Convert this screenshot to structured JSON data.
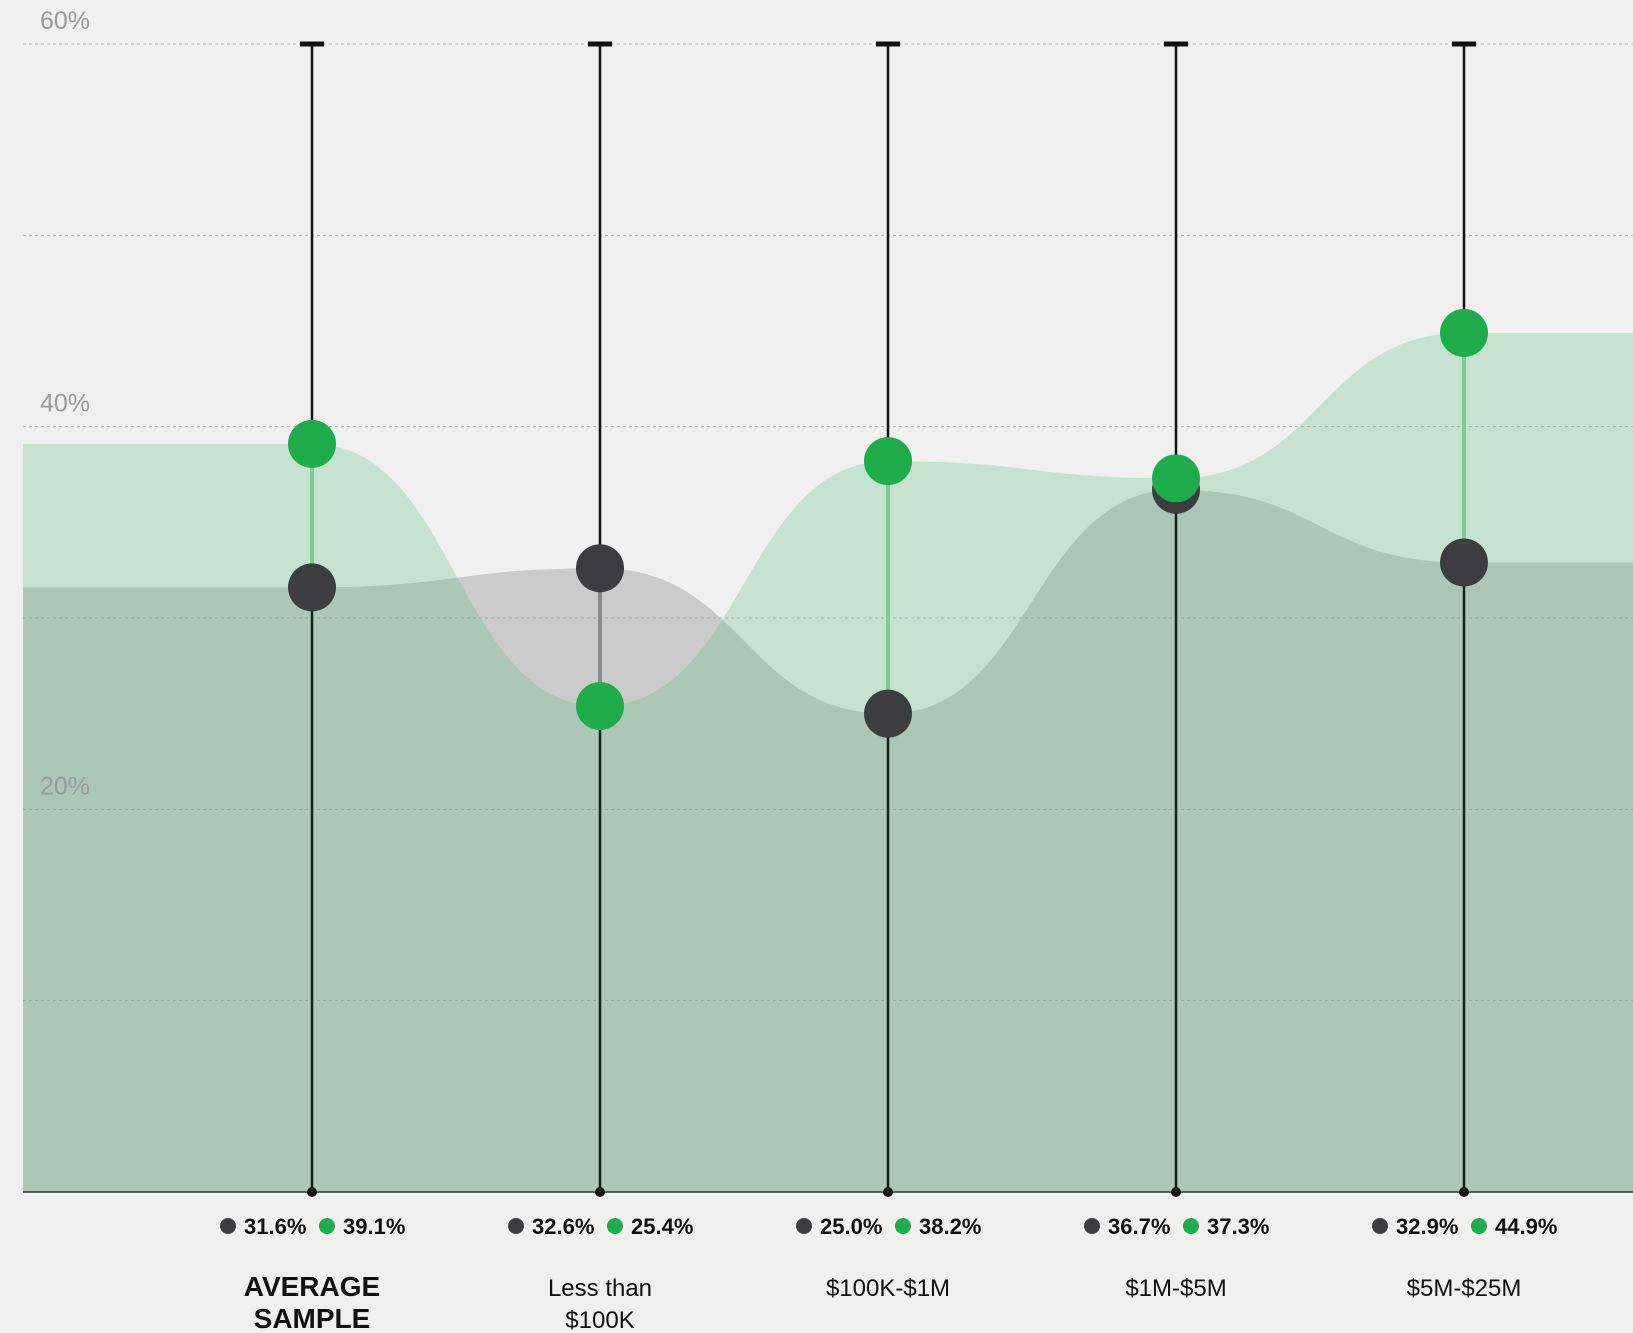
{
  "chart_data": {
    "type": "line",
    "ylim": [
      0,
      60
    ],
    "yticks": [
      {
        "value": 60,
        "label": "60%"
      },
      {
        "value": 40,
        "label": "40%"
      },
      {
        "value": 20,
        "label": "20%"
      }
    ],
    "gridlines": [
      10,
      20,
      30,
      40,
      50,
      60
    ],
    "categories": [
      {
        "lines": [
          "AVERAGE",
          "SAMPLE"
        ],
        "bold": true
      },
      {
        "lines": [
          "Less than",
          "$100K"
        ],
        "bold": false
      },
      {
        "lines": [
          "$100K-$1M"
        ],
        "bold": false
      },
      {
        "lines": [
          "$1M-$5M"
        ],
        "bold": false
      },
      {
        "lines": [
          "$5M-$25M"
        ],
        "bold": false
      }
    ],
    "series": [
      {
        "color": "#3d3d3f",
        "values": [
          31.6,
          32.6,
          25.0,
          36.7,
          32.9
        ],
        "labels": [
          "31.6%",
          "32.6%",
          "25.0%",
          "36.7%",
          "32.9%"
        ]
      },
      {
        "color": "#1fad4b",
        "values": [
          39.1,
          25.4,
          38.2,
          37.3,
          44.9
        ],
        "labels": [
          "39.1%",
          "25.4%",
          "38.2%",
          "37.3%",
          "44.9%"
        ]
      }
    ],
    "grid": true
  },
  "colors": {
    "background": "#f0f0f0",
    "dark_series": "#3d3d3f",
    "green_series": "#1fad4b",
    "green_area": "#c6e3d2",
    "dark_area": "#cbcbcb",
    "overlap_area": "#aac8b5"
  }
}
